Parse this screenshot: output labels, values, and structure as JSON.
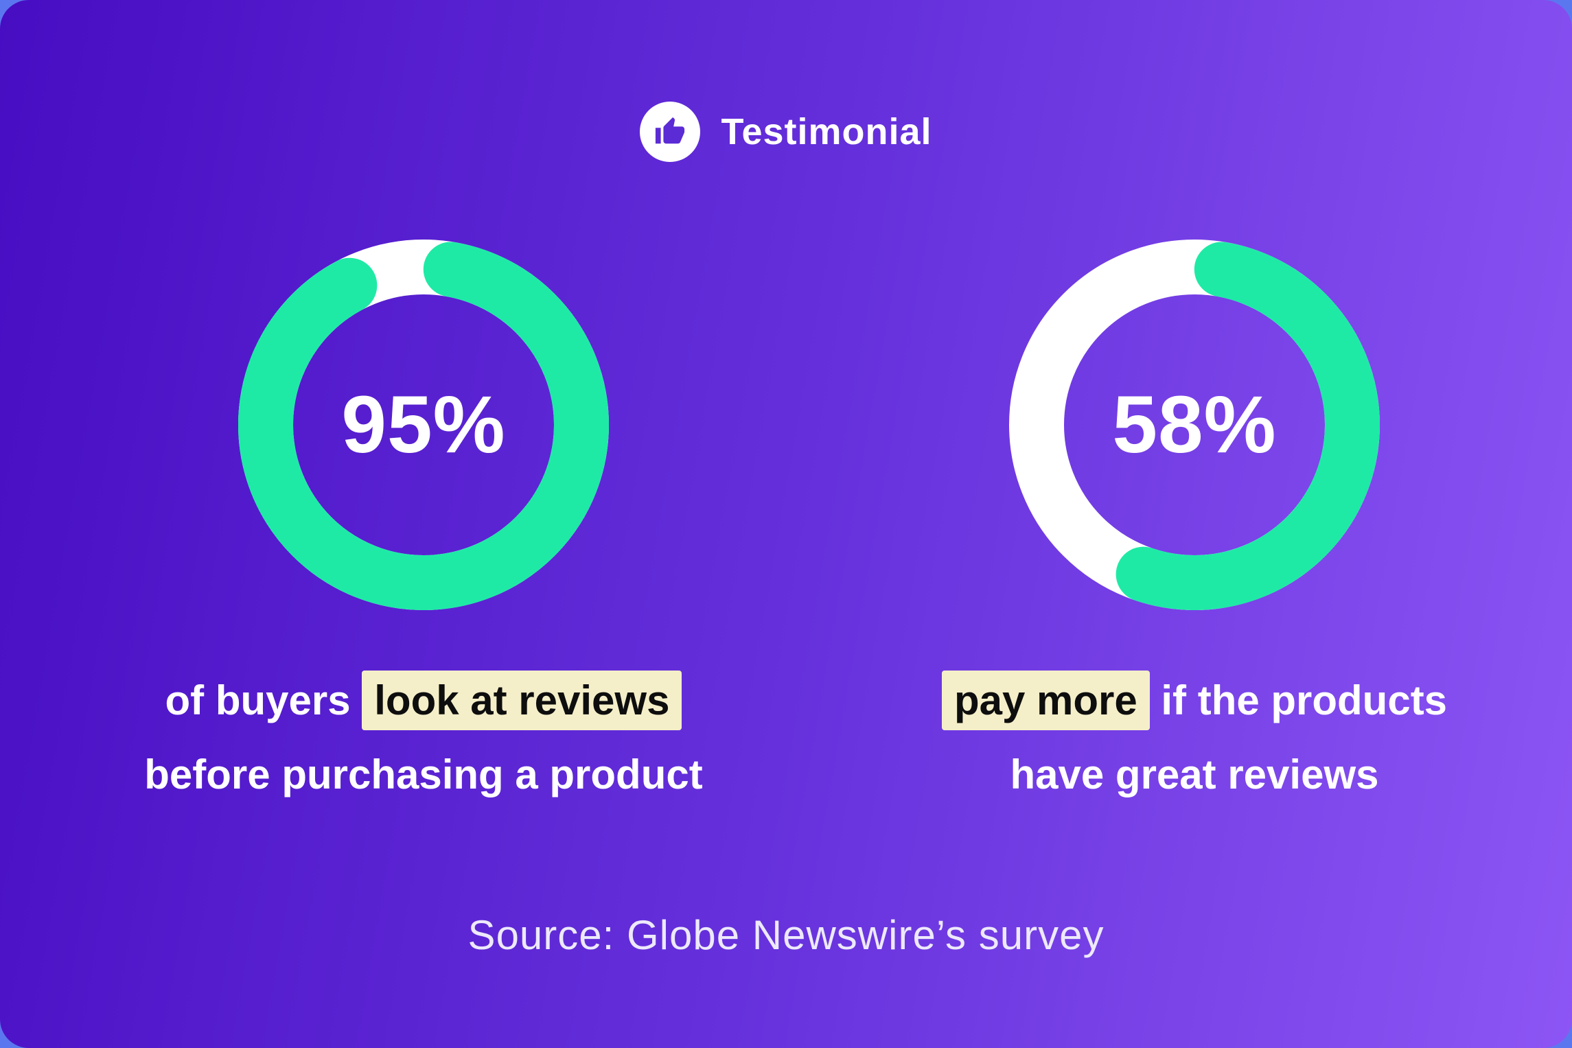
{
  "header": {
    "icon": "thumbs-up-icon",
    "title": "Testimonial"
  },
  "stats": [
    {
      "percent": 95,
      "percent_label": "95%",
      "caption_lines": [
        {
          "parts": [
            {
              "text": "of buyers ",
              "highlight": false
            },
            {
              "text": "look at reviews",
              "highlight": true
            }
          ]
        },
        {
          "parts": [
            {
              "text": "before purchasing a product",
              "highlight": false
            }
          ]
        }
      ]
    },
    {
      "percent": 58,
      "percent_label": "58%",
      "caption_lines": [
        {
          "parts": [
            {
              "text": "pay more",
              "highlight": true
            },
            {
              "text": " if the products",
              "highlight": false
            }
          ]
        },
        {
          "parts": [
            {
              "text": "have great reviews",
              "highlight": false
            }
          ]
        }
      ]
    }
  ],
  "source": {
    "text": "Source: Globe Newswire’s survey"
  },
  "colors": {
    "card_gradient_from": "#470DC2",
    "card_gradient_to": "#8C55F4",
    "page_background": "#5B77EF",
    "arc_fill": "#1EEAA6",
    "arc_remainder": "#FFFFFF",
    "highlight_bg": "#F5EFC9",
    "highlight_text": "#0E0E0E",
    "text_primary": "#FFFFFF",
    "source_text": "#EDE9FB",
    "icon_thumb": "#5B2BD5"
  },
  "chart_data": {
    "type": "pie",
    "subtype": "donut-progress",
    "title": "Testimonial",
    "unit": "%",
    "legend_position": "none",
    "series": [
      {
        "name": "of buyers look at reviews before purchasing a product",
        "value": 95,
        "remainder": 5
      },
      {
        "name": "pay more if the products have great reviews",
        "value": 58,
        "remainder": 42
      }
    ],
    "colors": {
      "filled": "#1EEAA6",
      "remainder": "#FFFFFF"
    },
    "source": "Source: Globe Newswire’s survey"
  }
}
